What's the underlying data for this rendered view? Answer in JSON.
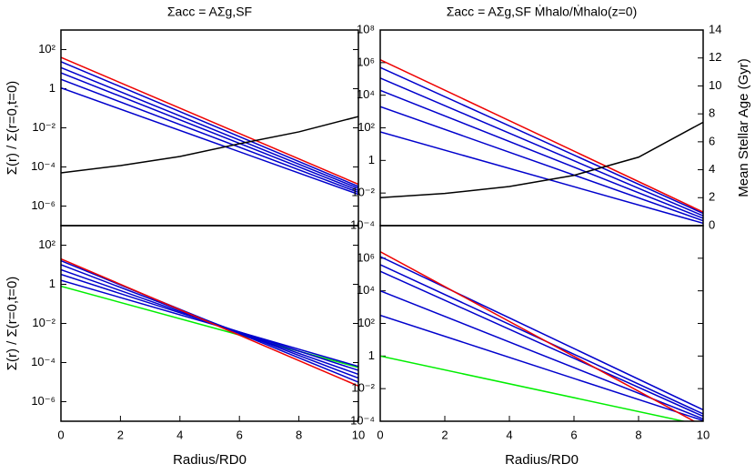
{
  "chart_data": [
    {
      "type": "line",
      "title": "Σacc = AΣg,SF",
      "y_label": "Σ(r) / Σ(r=0,t=0)",
      "log_y": true,
      "xlim": [
        0,
        10
      ],
      "ylim": [
        1e-07,
        1000
      ],
      "y2lim": [
        0,
        14
      ],
      "yticks": [
        {
          "value": 100,
          "label": "10²"
        },
        1,
        {
          "value": 0.01,
          "label": "10⁻²"
        },
        {
          "value": 0.0001,
          "label": "10⁻⁴"
        },
        {
          "value": 1e-06,
          "label": "10⁻⁶"
        }
      ],
      "series": [
        {
          "color": "#0000cc",
          "x": [
            0,
            10
          ],
          "values": [
            1.1,
            4e-06
          ]
        },
        {
          "color": "#0000cc",
          "x": [
            0,
            10
          ],
          "values": [
            3,
            5e-06
          ]
        },
        {
          "color": "#0000cc",
          "x": [
            0,
            10
          ],
          "values": [
            6.5,
            6.3e-06
          ]
        },
        {
          "color": "#0000cc",
          "x": [
            0,
            10
          ],
          "values": [
            12,
            8e-06
          ]
        },
        {
          "color": "#0000cc",
          "x": [
            0,
            10
          ],
          "values": [
            24,
            1e-05
          ]
        },
        {
          "color": "#ee0000",
          "x": [
            0,
            10
          ],
          "values": [
            40,
            1.3e-05
          ]
        },
        {
          "color": "#000000",
          "axis": "y2",
          "x": [
            0,
            2,
            4,
            6,
            8,
            10
          ],
          "values": [
            3.78,
            4.3,
            4.95,
            5.86,
            6.71,
            7.81
          ]
        }
      ]
    },
    {
      "type": "line",
      "title": "Σacc = AΣg,SF Ṁhalo/Ṁhalo(z=0)",
      "y2_label": "Mean Stellar Age (Gyr)",
      "log_y": true,
      "xlim": [
        0,
        10
      ],
      "ylim": [
        0.0001,
        100000000
      ],
      "y2lim": [
        0,
        14
      ],
      "yticks": [
        {
          "value": 100000000,
          "label": "10⁸"
        },
        {
          "value": 1000000,
          "label": "10⁶"
        },
        {
          "value": 10000,
          "label": "10⁴"
        },
        {
          "value": 100,
          "label": "10²"
        },
        1,
        {
          "value": 0.01,
          "label": "10⁻²"
        },
        {
          "value": 0.0001,
          "label": "10⁻⁴"
        }
      ],
      "y2ticks": [
        0,
        2,
        4,
        6,
        8,
        10,
        12,
        14
      ],
      "series": [
        {
          "color": "#0000cc",
          "x": [
            0,
            10
          ],
          "values": [
            56,
            0.00014
          ]
        },
        {
          "color": "#0000cc",
          "x": [
            0,
            10
          ],
          "values": [
            2000,
            0.0002
          ]
        },
        {
          "color": "#0000cc",
          "x": [
            0,
            10
          ],
          "values": [
            20000,
            0.00028
          ]
        },
        {
          "color": "#0000cc",
          "x": [
            0,
            10
          ],
          "values": [
            112000,
            0.0004
          ]
        },
        {
          "color": "#0000cc",
          "x": [
            0,
            10
          ],
          "values": [
            500000,
            0.00056
          ]
        },
        {
          "color": "#ee0000",
          "x": [
            0,
            10
          ],
          "values": [
            1500000,
            0.00068
          ]
        },
        {
          "color": "#000000",
          "axis": "y2",
          "x": [
            0,
            2,
            4,
            6,
            8,
            10
          ],
          "values": [
            2.0,
            2.3,
            2.8,
            3.6,
            4.9,
            7.4
          ]
        }
      ]
    },
    {
      "type": "line",
      "x_label": "Radius/RD0",
      "y_label": "Σ(r) / Σ(r=0,t=0)",
      "log_y": true,
      "xlim": [
        0,
        10
      ],
      "ylim": [
        1e-07,
        1000
      ],
      "xticks": [
        0,
        2,
        4,
        6,
        8,
        10
      ],
      "yticks": [
        {
          "value": 100,
          "label": "10²"
        },
        1,
        {
          "value": 0.01,
          "label": "10⁻²"
        },
        {
          "value": 0.0001,
          "label": "10⁻⁴"
        },
        {
          "value": 1e-06,
          "label": "10⁻⁶"
        }
      ],
      "series": [
        {
          "color": "#00ee00",
          "x": [
            0,
            10
          ],
          "values": [
            0.8,
            5.6e-05
          ]
        },
        {
          "color": "#0000cc",
          "x": [
            0,
            10
          ],
          "values": [
            1.6,
            6.3e-05
          ]
        },
        {
          "color": "#0000cc",
          "x": [
            0,
            10
          ],
          "values": [
            3.2,
            4e-05
          ]
        },
        {
          "color": "#0000cc",
          "x": [
            0,
            10
          ],
          "values": [
            5.6,
            2.5e-05
          ]
        },
        {
          "color": "#0000cc",
          "x": [
            0,
            10
          ],
          "values": [
            10,
            1.6e-05
          ]
        },
        {
          "color": "#0000cc",
          "x": [
            0,
            10
          ],
          "values": [
            16,
            1e-05
          ]
        },
        {
          "color": "#ee0000",
          "x": [
            0,
            10
          ],
          "values": [
            20,
            6.3e-06
          ]
        }
      ]
    },
    {
      "type": "line",
      "x_label": "Radius/RD0",
      "log_y": true,
      "xlim": [
        0,
        10
      ],
      "ylim": [
        0.0001,
        100000000
      ],
      "xticks": [
        0,
        2,
        4,
        6,
        8,
        10
      ],
      "yticks": [
        {
          "value": 1000000,
          "label": "10⁶"
        },
        {
          "value": 10000,
          "label": "10⁴"
        },
        {
          "value": 100,
          "label": "10²"
        },
        1,
        {
          "value": 0.01,
          "label": "10⁻²"
        },
        {
          "value": 0.0001,
          "label": "10⁻⁴"
        }
      ],
      "series": [
        {
          "color": "#00ee00",
          "x": [
            0,
            10
          ],
          "values": [
            1,
            5.5e-05
          ]
        },
        {
          "color": "#0000cc",
          "x": [
            0,
            10
          ],
          "values": [
            316,
            0.00011
          ]
        },
        {
          "color": "#0000cc",
          "x": [
            0,
            10
          ],
          "values": [
            10000,
            0.00014
          ]
        },
        {
          "color": "#0000cc",
          "x": [
            0,
            10
          ],
          "values": [
            158000,
            0.0002
          ]
        },
        {
          "color": "#0000cc",
          "x": [
            0,
            10
          ],
          "values": [
            400000,
            0.00028
          ]
        },
        {
          "color": "#0000cc",
          "x": [
            0,
            10
          ],
          "values": [
            1260000,
            0.0005
          ]
        },
        {
          "color": "#ee0000",
          "x": [
            0,
            10
          ],
          "values": [
            2500000,
            5e-05
          ]
        }
      ]
    }
  ]
}
